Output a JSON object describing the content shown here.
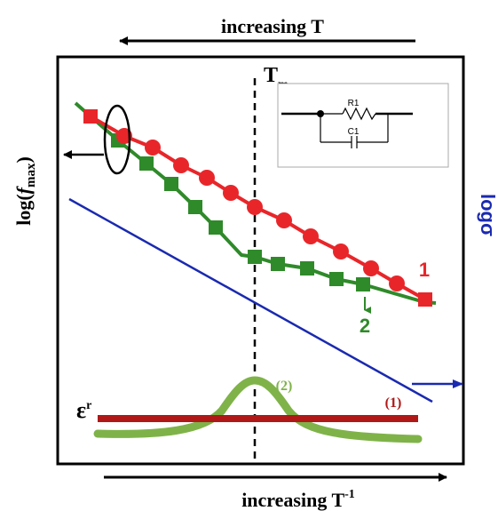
{
  "top_axis_label": "increasing T",
  "bottom_axis_label": "increasing T",
  "bottom_axis_superscript": "-1",
  "left_axis": {
    "prefix": "log(",
    "var": "f",
    "sub": "max",
    "suffix": ")"
  },
  "right_axis_label": "logσ",
  "tm_label": "T",
  "tm_subscript": "m",
  "epsilon_label": "ε",
  "epsilon_subscript": "r",
  "circuit": {
    "r_label": "R1",
    "c_label": "C1"
  },
  "series": [
    {
      "label": "1",
      "color": "#e8262a",
      "marker": "circle"
    },
    {
      "label": "2",
      "color": "#2f8a2a",
      "marker": "square"
    }
  ],
  "permittivity_curves": [
    {
      "label": "(1)",
      "color": "#b01818"
    },
    {
      "label": "(2)",
      "color": "#7fb349"
    }
  ],
  "conductivity_line_color": "#1a2ab0",
  "colors": {
    "frame": "#000000",
    "text_red": "#e8262a",
    "text_green": "#2f8a2a",
    "text_blue": "#1a2ab0"
  }
}
